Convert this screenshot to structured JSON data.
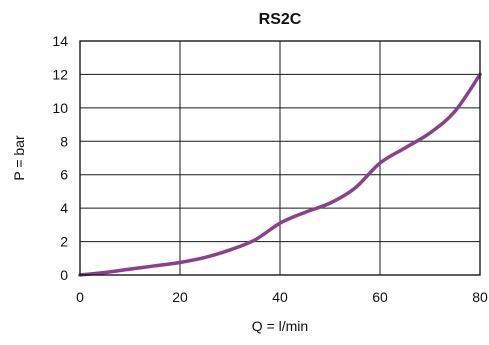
{
  "chart_data": {
    "type": "line",
    "title": "RS2C",
    "xlabel": "Q = l/min",
    "ylabel": "P = bar",
    "xlim": [
      0,
      80
    ],
    "ylim": [
      0,
      14
    ],
    "xticks": [
      0,
      20,
      40,
      60,
      80
    ],
    "yticks": [
      0,
      2,
      4,
      6,
      8,
      10,
      12,
      14
    ],
    "x_tick_labels": [
      "0",
      "20",
      "40",
      "60",
      "80"
    ],
    "y_tick_labels": [
      "0",
      "2",
      "4",
      "6",
      "8",
      "10",
      "12",
      "14"
    ],
    "grid": true,
    "series": [
      {
        "color": "#8b3f8d",
        "x": [
          0,
          5,
          10,
          15,
          20,
          25,
          30,
          35,
          40,
          45,
          50,
          55,
          60,
          65,
          70,
          75,
          80
        ],
        "y": [
          0,
          0.15,
          0.35,
          0.55,
          0.75,
          1.05,
          1.5,
          2.1,
          3.1,
          3.75,
          4.3,
          5.2,
          6.7,
          7.6,
          8.5,
          9.8,
          12
        ]
      }
    ]
  }
}
